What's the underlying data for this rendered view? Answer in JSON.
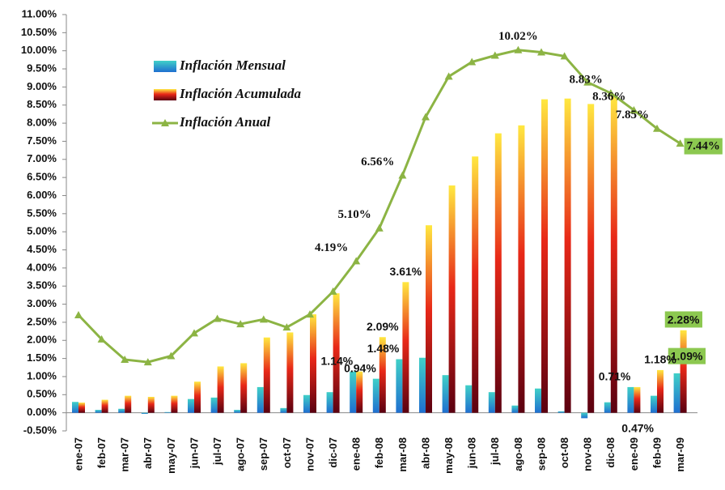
{
  "chart_data": {
    "type": "bar-line",
    "categories": [
      "ene-07",
      "feb-07",
      "mar-07",
      "abr-07",
      "may-07",
      "jun-07",
      "jul-07",
      "ago-07",
      "sep-07",
      "oct-07",
      "nov-07",
      "dic-07",
      "ene-08",
      "feb-08",
      "mar-08",
      "abr-08",
      "may-08",
      "jun-08",
      "jul-08",
      "ago-08",
      "sep-08",
      "oct-08",
      "nov-08",
      "dic-08",
      "ene-09",
      "feb-09",
      "mar-09"
    ],
    "series": [
      {
        "name": "Inflación Mensual",
        "type": "bar",
        "color": "#1f6fd0",
        "values": [
          0.3,
          0.08,
          0.11,
          -0.03,
          0.02,
          0.38,
          0.42,
          0.08,
          0.71,
          0.13,
          0.49,
          0.57,
          1.14,
          0.94,
          1.48,
          1.52,
          1.04,
          0.76,
          0.57,
          0.2,
          0.67,
          0.04,
          -0.15,
          0.29,
          0.71,
          0.47,
          1.09
        ],
        "value_labels": [
          null,
          null,
          null,
          null,
          null,
          null,
          null,
          null,
          null,
          null,
          null,
          null,
          "1.14%",
          "0.94%",
          "1.48%",
          null,
          null,
          null,
          null,
          null,
          null,
          null,
          null,
          null,
          "0.71%",
          "0.47%",
          "1.09%"
        ]
      },
      {
        "name": "Inflación Acumulada",
        "type": "bar",
        "color": "#e82818",
        "values": [
          0.28,
          0.36,
          0.47,
          0.44,
          0.47,
          0.86,
          1.28,
          1.37,
          2.08,
          2.22,
          2.72,
          3.3,
          1.14,
          2.09,
          3.61,
          5.18,
          6.28,
          7.08,
          7.72,
          7.94,
          8.66,
          8.68,
          8.53,
          8.75,
          0.71,
          1.18,
          2.28
        ],
        "value_labels": [
          null,
          null,
          null,
          null,
          null,
          null,
          null,
          null,
          null,
          null,
          null,
          null,
          null,
          "2.09%",
          "3.61%",
          null,
          null,
          null,
          null,
          null,
          null,
          null,
          null,
          null,
          null,
          "1.18%",
          "2.28%"
        ]
      },
      {
        "name": "Inflación Anual",
        "type": "line",
        "color": "#8cb444",
        "values": [
          2.7,
          2.03,
          1.47,
          1.4,
          1.57,
          2.2,
          2.6,
          2.45,
          2.58,
          2.36,
          2.72,
          3.35,
          4.19,
          5.1,
          6.56,
          8.17,
          9.29,
          9.69,
          9.87,
          10.02,
          9.96,
          9.85,
          9.13,
          8.83,
          8.36,
          7.85,
          7.44
        ],
        "value_labels": [
          null,
          null,
          null,
          null,
          null,
          null,
          null,
          null,
          null,
          null,
          null,
          null,
          "4.19%",
          "5.10%",
          "6.56%",
          null,
          null,
          null,
          null,
          "10.02%",
          null,
          null,
          null,
          "8.83%",
          "8.36%",
          "7.85%",
          "7.44%"
        ]
      }
    ],
    "ylim": [
      -0.5,
      11
    ],
    "yticks": [
      {
        "value": -0.5,
        "label": "-0.50%"
      },
      {
        "value": 0,
        "label": "0.00%"
      },
      {
        "value": 0.5,
        "label": "0.50%"
      },
      {
        "value": 1,
        "label": "1.00%"
      },
      {
        "value": 1.5,
        "label": "1.50%"
      },
      {
        "value": 2,
        "label": "2.00%"
      },
      {
        "value": 2.5,
        "label": "2.50%"
      },
      {
        "value": 3,
        "label": "3.00%"
      },
      {
        "value": 3.5,
        "label": "3.50%"
      },
      {
        "value": 4,
        "label": "4.00%"
      },
      {
        "value": 4.5,
        "label": "4.50%"
      },
      {
        "value": 5,
        "label": "5.00%"
      },
      {
        "value": 5.5,
        "label": "5.50%"
      },
      {
        "value": 6,
        "label": "6.00%"
      },
      {
        "value": 6.5,
        "label": "6.50%"
      },
      {
        "value": 7,
        "label": "7.00%"
      },
      {
        "value": 7.5,
        "label": "7.50%"
      },
      {
        "value": 8,
        "label": "8.00%"
      },
      {
        "value": 8.5,
        "label": "8.50%"
      },
      {
        "value": 9,
        "label": "9.00%"
      },
      {
        "value": 9.5,
        "label": "9.50%"
      },
      {
        "value": 10,
        "label": "10.00%"
      },
      {
        "value": 10.5,
        "label": "10.50%"
      },
      {
        "value": 11,
        "label": "11.00%"
      }
    ],
    "grid": false,
    "legend": "upper left"
  }
}
